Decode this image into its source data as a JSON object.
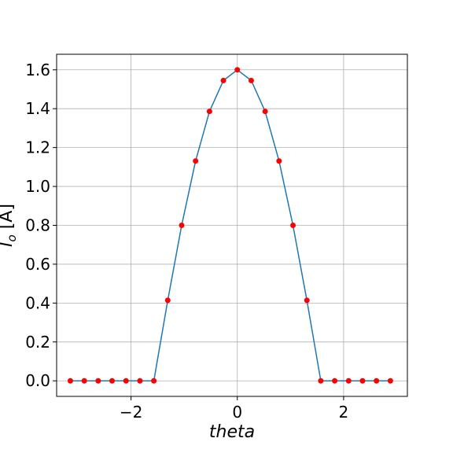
{
  "chart_data": {
    "type": "line",
    "xlabel": "theta",
    "ylabel_main": "I",
    "ylabel_sub": "o",
    "ylabel_unit": " [A]",
    "xlim": [
      -3.4,
      3.2
    ],
    "ylim": [
      -0.08,
      1.68
    ],
    "grid": true,
    "x_ticks": [
      -2,
      0,
      2
    ],
    "x_tick_labels": [
      "−2",
      "0",
      "2"
    ],
    "y_ticks": [
      0.0,
      0.2,
      0.4,
      0.6,
      0.8,
      1.0,
      1.2,
      1.4,
      1.6
    ],
    "y_tick_labels": [
      "0.0",
      "0.2",
      "0.4",
      "0.6",
      "0.8",
      "1.0",
      "1.2",
      "1.4",
      "1.6"
    ],
    "series": [
      {
        "line_color": "#1f77b4",
        "marker_color": "#ff0000",
        "x": [
          -3.1416,
          -2.8798,
          -2.618,
          -2.3562,
          -2.0944,
          -1.8326,
          -1.5708,
          -1.309,
          -1.0472,
          -0.7854,
          -0.5236,
          -0.2618,
          0.0,
          0.2618,
          0.5236,
          0.7854,
          1.0472,
          1.309,
          1.5708,
          1.8326,
          2.0944,
          2.3562,
          2.618,
          2.8798
        ],
        "y": [
          0.0,
          0.0,
          0.0,
          0.0,
          0.0,
          0.0,
          0.0,
          0.414,
          0.8,
          1.131,
          1.386,
          1.545,
          1.6,
          1.545,
          1.386,
          1.131,
          0.8,
          0.414,
          0.0,
          0.0,
          0.0,
          0.0,
          0.0,
          0.0
        ]
      }
    ]
  }
}
